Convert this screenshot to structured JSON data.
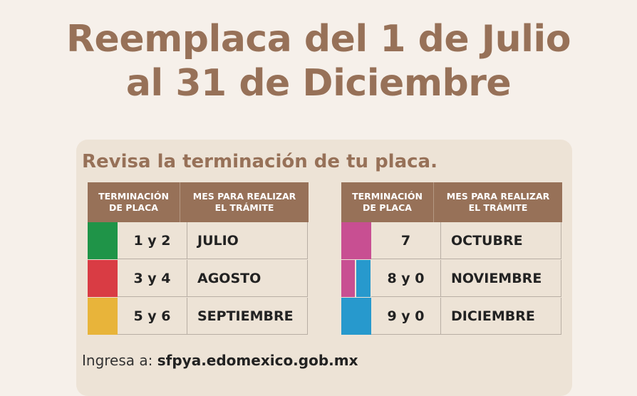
{
  "title": {
    "line1": "Reemplaca del 1 de Julio",
    "line2": "al 31 de Diciembre"
  },
  "subtitle": "Revisa la terminación de tu placa.",
  "header": {
    "col1": "TERMINACIÓN\nDE PLACA",
    "col2": "MES PARA REALIZAR\nEL TRÁMITE"
  },
  "left_table": [
    {
      "digits": "1 y 2",
      "month": "JULIO",
      "colors": [
        "#1f9448"
      ]
    },
    {
      "digits": "3 y 4",
      "month": "AGOSTO",
      "colors": [
        "#d93c44"
      ]
    },
    {
      "digits": "5 y 6",
      "month": "SEPTIEMBRE",
      "colors": [
        "#e8b43a"
      ]
    }
  ],
  "right_table": [
    {
      "digits": "7",
      "month": "OCTUBRE",
      "colors": [
        "#c84f92"
      ]
    },
    {
      "digits": "8 y 0",
      "month": "NOVIEMBRE",
      "colors": [
        "#c84f92",
        "#2799cd"
      ]
    },
    {
      "digits": "9 y 0",
      "month": "DICIEMBRE",
      "colors": [
        "#2799cd"
      ]
    }
  ],
  "footer": {
    "prefix": "Ingresa a:",
    "url": "sfpya.edomexico.gob.mx"
  },
  "colors": {
    "brand_brown": "#977158",
    "card_bg": "#ede3d6",
    "page_bg": "#f6f0ea"
  }
}
